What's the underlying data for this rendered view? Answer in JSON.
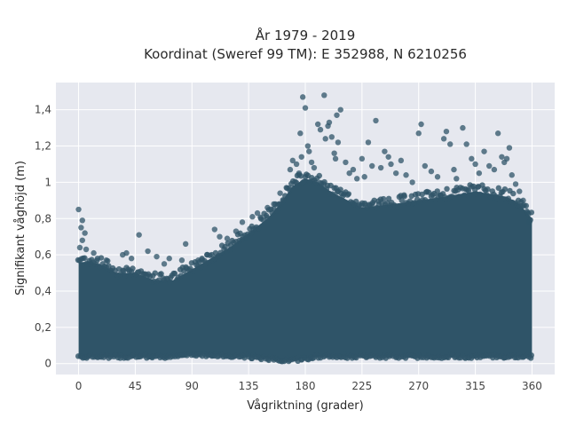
{
  "chart_data": {
    "type": "scatter",
    "title": "År 1979 - 2019",
    "subtitle": "Koordinat (Sweref 99 TM): E 352988, N 6210256",
    "xlabel": "Vågriktning (grader)",
    "ylabel": "Signifikant våghöjd (m)",
    "xlim": [
      -18,
      378
    ],
    "ylim": [
      -0.06,
      1.55
    ],
    "x_ticks": [
      0,
      45,
      90,
      135,
      180,
      225,
      270,
      315,
      360
    ],
    "x_tick_labels": [
      "0",
      "45",
      "90",
      "135",
      "180",
      "225",
      "270",
      "315",
      "360"
    ],
    "y_ticks": [
      0,
      0.2,
      0.4,
      0.6,
      0.8,
      1.0,
      1.2,
      1.4
    ],
    "y_tick_labels": [
      "0",
      "0,2",
      "0,4",
      "0,6",
      "0,8",
      "1",
      "1,2",
      "1,4"
    ],
    "grid": true,
    "legend": "none",
    "marker_color": "#2f5468",
    "envelope": {
      "x": [
        0,
        10,
        20,
        30,
        45,
        60,
        75,
        90,
        105,
        120,
        135,
        150,
        160,
        170,
        180,
        190,
        200,
        225,
        250,
        270,
        290,
        315,
        340,
        350,
        360
      ],
      "y_min": [
        0.04,
        0.04,
        0.04,
        0.04,
        0.04,
        0.04,
        0.04,
        0.05,
        0.05,
        0.04,
        0.04,
        0.03,
        0.02,
        0.02,
        0.03,
        0.04,
        0.04,
        0.04,
        0.04,
        0.04,
        0.04,
        0.04,
        0.04,
        0.04,
        0.04
      ],
      "y_max": [
        0.56,
        0.56,
        0.54,
        0.5,
        0.5,
        0.46,
        0.46,
        0.52,
        0.58,
        0.64,
        0.72,
        0.8,
        0.88,
        0.98,
        1.02,
        1.0,
        0.95,
        0.86,
        0.88,
        0.9,
        0.92,
        0.95,
        0.92,
        0.88,
        0.8
      ]
    },
    "outliers": [
      {
        "x": 0,
        "y": 0.85
      },
      {
        "x": 3,
        "y": 0.79
      },
      {
        "x": 2,
        "y": 0.75
      },
      {
        "x": 5,
        "y": 0.72
      },
      {
        "x": 3,
        "y": 0.68
      },
      {
        "x": 1,
        "y": 0.64
      },
      {
        "x": 6,
        "y": 0.63
      },
      {
        "x": 12,
        "y": 0.61
      },
      {
        "x": 15,
        "y": 0.58
      },
      {
        "x": 22,
        "y": 0.57
      },
      {
        "x": 35,
        "y": 0.6
      },
      {
        "x": 38,
        "y": 0.61
      },
      {
        "x": 42,
        "y": 0.58
      },
      {
        "x": 48,
        "y": 0.71
      },
      {
        "x": 55,
        "y": 0.62
      },
      {
        "x": 62,
        "y": 0.59
      },
      {
        "x": 68,
        "y": 0.55
      },
      {
        "x": 72,
        "y": 0.58
      },
      {
        "x": 82,
        "y": 0.57
      },
      {
        "x": 85,
        "y": 0.66
      },
      {
        "x": 95,
        "y": 0.57
      },
      {
        "x": 98,
        "y": 0.58
      },
      {
        "x": 102,
        "y": 0.6
      },
      {
        "x": 108,
        "y": 0.74
      },
      {
        "x": 112,
        "y": 0.7
      },
      {
        "x": 118,
        "y": 0.69
      },
      {
        "x": 125,
        "y": 0.73
      },
      {
        "x": 130,
        "y": 0.78
      },
      {
        "x": 138,
        "y": 0.81
      },
      {
        "x": 142,
        "y": 0.83
      },
      {
        "x": 150,
        "y": 0.86
      },
      {
        "x": 155,
        "y": 0.88
      },
      {
        "x": 160,
        "y": 0.94
      },
      {
        "x": 165,
        "y": 0.97
      },
      {
        "x": 168,
        "y": 1.07
      },
      {
        "x": 170,
        "y": 1.12
      },
      {
        "x": 173,
        "y": 1.1
      },
      {
        "x": 175,
        "y": 1.05
      },
      {
        "x": 176,
        "y": 1.27
      },
      {
        "x": 177,
        "y": 1.14
      },
      {
        "x": 178,
        "y": 1.47
      },
      {
        "x": 180,
        "y": 1.41
      },
      {
        "x": 182,
        "y": 1.2
      },
      {
        "x": 183,
        "y": 1.17
      },
      {
        "x": 185,
        "y": 1.11
      },
      {
        "x": 187,
        "y": 1.08
      },
      {
        "x": 190,
        "y": 1.32
      },
      {
        "x": 192,
        "y": 1.29
      },
      {
        "x": 195,
        "y": 1.48
      },
      {
        "x": 196,
        "y": 1.24
      },
      {
        "x": 198,
        "y": 1.31
      },
      {
        "x": 199,
        "y": 1.33
      },
      {
        "x": 201,
        "y": 1.25
      },
      {
        "x": 203,
        "y": 1.16
      },
      {
        "x": 204,
        "y": 1.13
      },
      {
        "x": 205,
        "y": 1.37
      },
      {
        "x": 206,
        "y": 1.22
      },
      {
        "x": 208,
        "y": 1.4
      },
      {
        "x": 212,
        "y": 1.11
      },
      {
        "x": 215,
        "y": 1.05
      },
      {
        "x": 218,
        "y": 1.07
      },
      {
        "x": 221,
        "y": 1.02
      },
      {
        "x": 225,
        "y": 1.13
      },
      {
        "x": 227,
        "y": 1.03
      },
      {
        "x": 230,
        "y": 1.22
      },
      {
        "x": 233,
        "y": 1.09
      },
      {
        "x": 236,
        "y": 1.34
      },
      {
        "x": 240,
        "y": 1.08
      },
      {
        "x": 243,
        "y": 1.17
      },
      {
        "x": 246,
        "y": 1.14
      },
      {
        "x": 248,
        "y": 1.1
      },
      {
        "x": 252,
        "y": 1.05
      },
      {
        "x": 256,
        "y": 1.12
      },
      {
        "x": 260,
        "y": 1.04
      },
      {
        "x": 265,
        "y": 1.0
      },
      {
        "x": 272,
        "y": 1.32
      },
      {
        "x": 270,
        "y": 1.27
      },
      {
        "x": 275,
        "y": 1.09
      },
      {
        "x": 280,
        "y": 1.06
      },
      {
        "x": 285,
        "y": 1.03
      },
      {
        "x": 290,
        "y": 1.24
      },
      {
        "x": 292,
        "y": 1.28
      },
      {
        "x": 295,
        "y": 1.21
      },
      {
        "x": 298,
        "y": 1.07
      },
      {
        "x": 300,
        "y": 1.02
      },
      {
        "x": 305,
        "y": 1.3
      },
      {
        "x": 308,
        "y": 1.21
      },
      {
        "x": 312,
        "y": 1.13
      },
      {
        "x": 315,
        "y": 1.1
      },
      {
        "x": 318,
        "y": 1.05
      },
      {
        "x": 322,
        "y": 1.17
      },
      {
        "x": 326,
        "y": 1.09
      },
      {
        "x": 330,
        "y": 1.07
      },
      {
        "x": 333,
        "y": 1.27
      },
      {
        "x": 336,
        "y": 1.14
      },
      {
        "x": 338,
        "y": 1.11
      },
      {
        "x": 340,
        "y": 1.13
      },
      {
        "x": 342,
        "y": 1.19
      },
      {
        "x": 344,
        "y": 1.04
      },
      {
        "x": 347,
        "y": 0.99
      },
      {
        "x": 350,
        "y": 0.95
      },
      {
        "x": 353,
        "y": 0.9
      },
      {
        "x": 356,
        "y": 0.84
      },
      {
        "x": 358,
        "y": 0.78
      }
    ]
  }
}
